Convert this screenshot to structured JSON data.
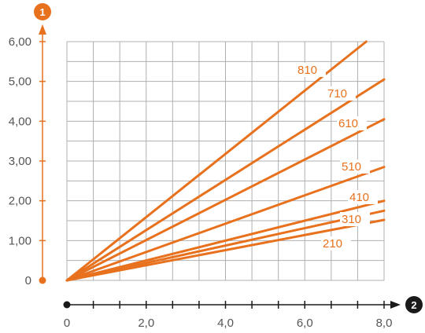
{
  "chart_data": {
    "type": "line",
    "title": "",
    "xlabel": "",
    "ylabel": "",
    "xlim": [
      0,
      8.0
    ],
    "ylim": [
      0,
      6.0
    ],
    "grid": true,
    "x_tick_labels": [
      "0",
      "2,0",
      "4,0",
      "6,0",
      "8,0"
    ],
    "y_tick_labels": [
      "0",
      "1,00",
      "2,00",
      "3,00",
      "4,00",
      "5,00",
      "6,00"
    ],
    "axis_badges": {
      "y": "1",
      "x": "2"
    },
    "series": [
      {
        "name": "810",
        "x": [
          0,
          7.55
        ],
        "y": [
          0,
          6.0
        ]
      },
      {
        "name": "710",
        "x": [
          0,
          8.0
        ],
        "y": [
          0,
          5.05
        ]
      },
      {
        "name": "610",
        "x": [
          0,
          8.0
        ],
        "y": [
          0,
          4.05
        ]
      },
      {
        "name": "510",
        "x": [
          0,
          8.0
        ],
        "y": [
          0,
          2.85
        ]
      },
      {
        "name": "410",
        "x": [
          0,
          8.0
        ],
        "y": [
          0,
          2.0
        ]
      },
      {
        "name": "310",
        "x": [
          0,
          8.0
        ],
        "y": [
          0,
          1.75
        ]
      },
      {
        "name": "210",
        "x": [
          0,
          8.0
        ],
        "y": [
          0,
          1.52
        ]
      }
    ],
    "colors": {
      "series": "#e8711e",
      "axis_y": "#e8711e",
      "axis_x": "#1a1a1a",
      "grid": "#b0b0b0",
      "label": "#e8711e",
      "badge_y": "#e8711e",
      "badge_x": "#1a1a1a"
    }
  }
}
